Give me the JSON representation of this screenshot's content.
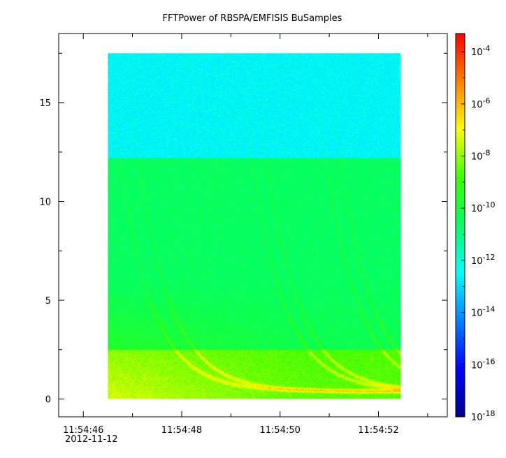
{
  "chart_data": {
    "type": "heatmap",
    "title": "FFTPower of RBSPA/EMFISIS  BuSamples",
    "xlabel": "",
    "ylabel": "",
    "x_tick_labels": [
      "11:54:46",
      "11:54:48",
      "11:54:50",
      "11:54:52"
    ],
    "x_tick_values_seconds": [
      46,
      48,
      50,
      52
    ],
    "x_date_label": "2012-11-12",
    "x_range_seconds": [
      45.5,
      53.4
    ],
    "data_x_range_seconds": [
      46.5,
      52.45
    ],
    "y_tick_labels": [
      "0",
      "5",
      "10",
      "15"
    ],
    "y_tick_values": [
      0,
      5,
      10,
      15
    ],
    "y_range": [
      -0.9,
      18.5
    ],
    "data_y_range": [
      0,
      17.5
    ],
    "colorbar": {
      "scale": "log",
      "range_exponent": [
        -18,
        -3.3
      ],
      "tick_labels": [
        {
          "base": "10",
          "exp": "-4",
          "value_exp": -4
        },
        {
          "base": "10",
          "exp": "-6",
          "value_exp": -6
        },
        {
          "base": "10",
          "exp": "-8",
          "value_exp": -8
        },
        {
          "base": "10",
          "exp": "-10",
          "value_exp": -10
        },
        {
          "base": "10",
          "exp": "-12",
          "value_exp": -12
        },
        {
          "base": "10",
          "exp": "-14",
          "value_exp": -14
        },
        {
          "base": "10",
          "exp": "-16",
          "value_exp": -16
        },
        {
          "base": "10",
          "exp": "-18",
          "value_exp": -18
        }
      ]
    },
    "regions": [
      {
        "y_range": [
          12.2,
          17.5
        ],
        "level_exp": -12.5
      },
      {
        "y_range": [
          2.5,
          12.2
        ],
        "level_exp": -10.5
      },
      {
        "y_range": [
          0,
          2.5
        ],
        "level_exp": -9
      }
    ],
    "grid": false
  },
  "colors": {
    "frame": "#000000",
    "background": "#ffffff"
  }
}
